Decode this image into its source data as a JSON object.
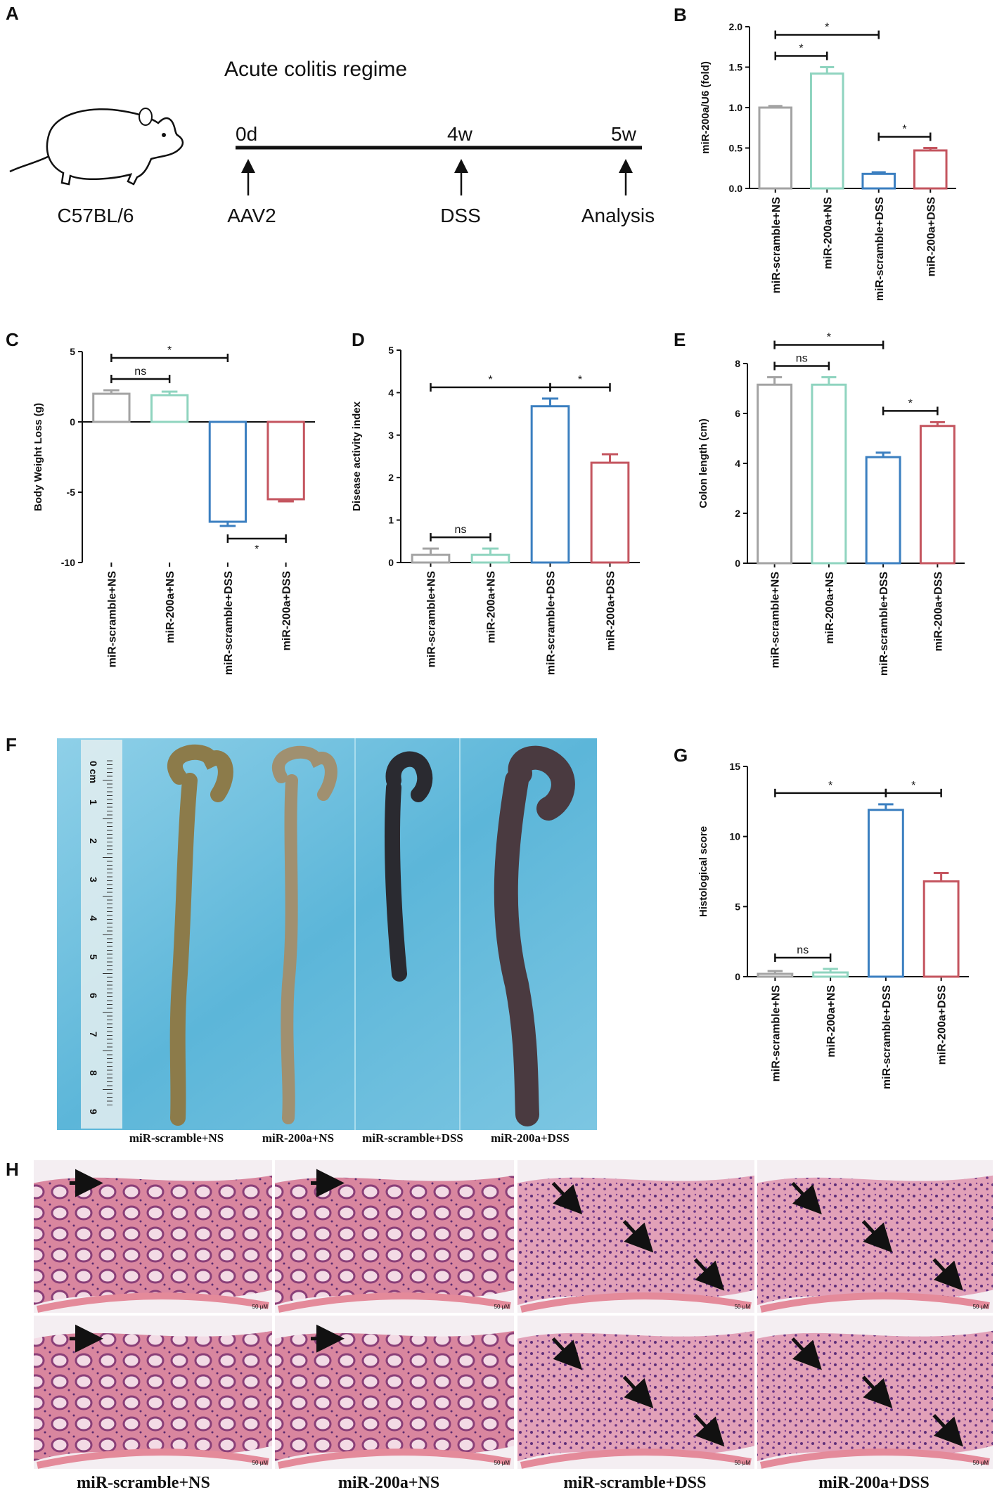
{
  "panel_a": {
    "label": "A",
    "title": "Acute colitis regime",
    "strain": "C57BL/6",
    "timepoints": [
      "0d",
      "4w",
      "5w"
    ],
    "events": [
      "AAV2",
      "DSS",
      "Analysis"
    ]
  },
  "chart_data": [
    {
      "panel": "B",
      "type": "bar",
      "ylabel": "miR-200a/U6 (fold)",
      "categories": [
        "miR-scramble+NS",
        "miR-200a+NS",
        "miR-scramble+DSS",
        "miR-200a+DSS"
      ],
      "values": [
        1.0,
        1.42,
        0.18,
        0.47
      ],
      "errors": [
        0.02,
        0.08,
        0.02,
        0.03
      ],
      "colors": [
        "#a3a3a3",
        "#8fd4bf",
        "#3b7fc0",
        "#c4555f"
      ],
      "ylim": [
        0,
        2
      ],
      "yticks": [
        {
          "value": 0,
          "label": "0.0"
        },
        {
          "value": 0.5,
          "label": "0.5"
        },
        {
          "value": 1,
          "label": "1.0"
        },
        {
          "value": 1.5,
          "label": "1.5"
        },
        {
          "value": 2,
          "label": "2.0"
        }
      ],
      "annotations": [
        {
          "text": "*",
          "span": [
            0,
            1
          ]
        },
        {
          "text": "*",
          "span": [
            0,
            2
          ]
        },
        {
          "text": "*",
          "span": [
            2,
            3
          ]
        }
      ]
    },
    {
      "panel": "C",
      "type": "bar",
      "ylabel": "Body Weight Loss (g)",
      "categories": [
        "miR-scramble+NS",
        "miR-200a+NS",
        "miR-scramble+DSS",
        "miR-200a+DSS"
      ],
      "values": [
        2.0,
        1.9,
        -7.1,
        -5.5
      ],
      "errors": [
        0.25,
        0.25,
        0.3,
        0.15
      ],
      "colors": [
        "#a3a3a3",
        "#8fd4bf",
        "#3b7fc0",
        "#c4555f"
      ],
      "ylim": [
        -10,
        5
      ],
      "yticks": [
        -10,
        -5,
        0,
        5
      ],
      "annotations": [
        {
          "text": "ns",
          "span": [
            0,
            1
          ]
        },
        {
          "text": "*",
          "span": [
            0,
            2
          ]
        },
        {
          "text": "*",
          "span": [
            2,
            3
          ],
          "side": "below"
        }
      ]
    },
    {
      "panel": "D",
      "type": "bar",
      "ylabel": "Disease activity index",
      "categories": [
        "miR-scramble+NS",
        "miR-200a+NS",
        "miR-scramble+DSS",
        "miR-200a+DSS"
      ],
      "values": [
        0.18,
        0.18,
        3.68,
        2.35
      ],
      "errors": [
        0.15,
        0.15,
        0.18,
        0.2
      ],
      "colors": [
        "#a3a3a3",
        "#8fd4bf",
        "#3b7fc0",
        "#c4555f"
      ],
      "ylim": [
        0,
        5
      ],
      "yticks": [
        0,
        1,
        2,
        3,
        4,
        5
      ],
      "annotations": [
        {
          "text": "ns",
          "span": [
            0,
            1
          ]
        },
        {
          "text": "*",
          "span": [
            0,
            2
          ]
        },
        {
          "text": "*",
          "span": [
            2,
            3
          ]
        }
      ]
    },
    {
      "panel": "E",
      "type": "bar",
      "ylabel": "Colon length (cm)",
      "categories": [
        "miR-scramble+NS",
        "miR-200a+NS",
        "miR-scramble+DSS",
        "miR-200a+DSS"
      ],
      "values": [
        7.15,
        7.15,
        4.25,
        5.5
      ],
      "errors": [
        0.3,
        0.3,
        0.18,
        0.15
      ],
      "colors": [
        "#a3a3a3",
        "#8fd4bf",
        "#3b7fc0",
        "#c4555f"
      ],
      "ylim": [
        0,
        8
      ],
      "yticks": [
        0,
        2,
        4,
        6,
        8
      ],
      "annotations": [
        {
          "text": "ns",
          "span": [
            0,
            1
          ]
        },
        {
          "text": "*",
          "span": [
            0,
            2
          ]
        },
        {
          "text": "*",
          "span": [
            2,
            3
          ]
        }
      ]
    },
    {
      "panel": "G",
      "type": "bar",
      "ylabel": "Histological score",
      "categories": [
        "miR-scramble+NS",
        "miR-200a+NS",
        "miR-scramble+DSS",
        "miR-200a+DSS"
      ],
      "values": [
        0.2,
        0.3,
        11.9,
        6.8
      ],
      "errors": [
        0.2,
        0.25,
        0.4,
        0.6
      ],
      "colors": [
        "#a3a3a3",
        "#8fd4bf",
        "#3b7fc0",
        "#c4555f"
      ],
      "ylim": [
        0,
        15
      ],
      "yticks": [
        0,
        5,
        10,
        15
      ],
      "annotations": [
        {
          "text": "ns",
          "span": [
            0,
            1
          ]
        },
        {
          "text": "*",
          "span": [
            0,
            2
          ]
        },
        {
          "text": "*",
          "span": [
            2,
            3
          ]
        }
      ]
    }
  ],
  "panel_f": {
    "label": "F",
    "ruler_labels": [
      "0 cm",
      "1",
      "2",
      "3",
      "4",
      "5",
      "6",
      "7",
      "8",
      "9"
    ],
    "groups": [
      "miR-scramble+NS",
      "miR-200a+NS",
      "miR-scramble+DSS",
      "miR-200a+DSS"
    ]
  },
  "panel_h": {
    "label": "H",
    "scale_bar": "50 μM",
    "groups": [
      "miR-scramble+NS",
      "miR-200a+NS",
      "miR-scramble+DSS",
      "miR-200a+DSS"
    ]
  }
}
